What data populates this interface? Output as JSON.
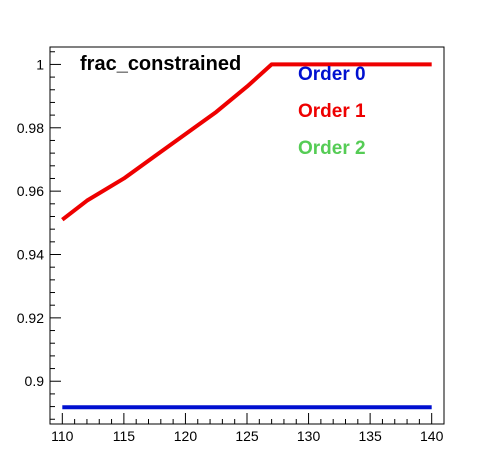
{
  "chart_data": {
    "type": "line",
    "title": "frac_constrained",
    "xlabel": "",
    "ylabel": "",
    "xlim": [
      109,
      141
    ],
    "ylim": [
      0.8865,
      1.0055
    ],
    "x_ticks": [
      110,
      115,
      120,
      125,
      130,
      135,
      140
    ],
    "x_tick_labels": [
      "110",
      "115",
      "120",
      "125",
      "130",
      "135",
      "140"
    ],
    "y_ticks": [
      0.9,
      0.92,
      0.94,
      0.96,
      0.98,
      1.0
    ],
    "y_tick_labels": [
      "0.9",
      "0.92",
      "0.94",
      "0.96",
      "0.98",
      "1"
    ],
    "grid": false,
    "legend_position": "top-right",
    "series": [
      {
        "name": "Order 0",
        "color": "#0010d0",
        "x": [
          110,
          140
        ],
        "y": [
          0.8918,
          0.8918
        ]
      },
      {
        "name": "Order 1",
        "color": "#ee0000",
        "x": [
          110,
          112,
          115,
          117.5,
          120,
          122.5,
          125,
          127,
          130,
          135,
          140
        ],
        "y": [
          0.951,
          0.957,
          0.964,
          0.971,
          0.978,
          0.985,
          0.993,
          1.0,
          1.0,
          1.0,
          1.0
        ]
      },
      {
        "name": "Order 2",
        "color": "#55cc55",
        "x": [],
        "y": []
      }
    ]
  }
}
